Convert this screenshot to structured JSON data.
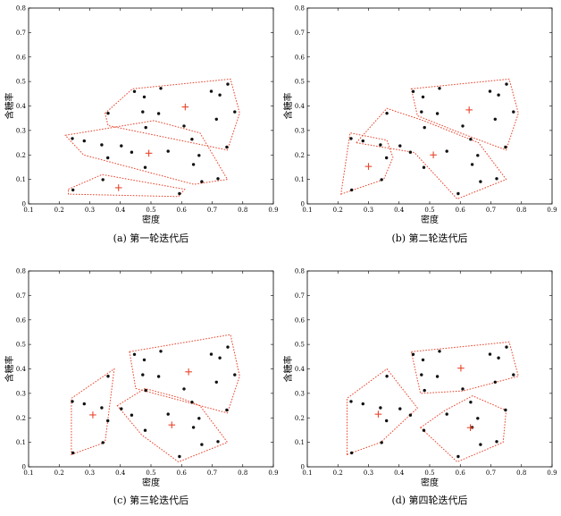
{
  "chart_data": [
    {
      "type": "scatter",
      "caption": "(a) 第一轮迭代后",
      "xlabel": "密度",
      "ylabel": "含糖率",
      "xlim": [
        0.1,
        0.9
      ],
      "ylim": [
        0,
        0.8
      ],
      "xticks": [
        "0.1",
        "0.2",
        "0.3",
        "0.4",
        "0.5",
        "0.6",
        "0.7",
        "0.8",
        "0.9"
      ],
      "yticks": [
        "0",
        "0.1",
        "0.2",
        "0.3",
        "0.4",
        "0.5",
        "0.6",
        "0.7",
        "0.8"
      ],
      "points": [
        [
          0.697,
          0.46
        ],
        [
          0.774,
          0.376
        ],
        [
          0.634,
          0.264
        ],
        [
          0.608,
          0.318
        ],
        [
          0.556,
          0.215
        ],
        [
          0.403,
          0.237
        ],
        [
          0.481,
          0.149
        ],
        [
          0.437,
          0.211
        ],
        [
          0.666,
          0.091
        ],
        [
          0.243,
          0.267
        ],
        [
          0.245,
          0.057
        ],
        [
          0.343,
          0.099
        ],
        [
          0.639,
          0.161
        ],
        [
          0.657,
          0.198
        ],
        [
          0.36,
          0.37
        ],
        [
          0.593,
          0.042
        ],
        [
          0.719,
          0.103
        ],
        [
          0.359,
          0.188
        ],
        [
          0.339,
          0.241
        ],
        [
          0.282,
          0.257
        ],
        [
          0.748,
          0.232
        ],
        [
          0.714,
          0.346
        ],
        [
          0.483,
          0.312
        ],
        [
          0.478,
          0.437
        ],
        [
          0.525,
          0.369
        ],
        [
          0.751,
          0.489
        ],
        [
          0.532,
          0.472
        ],
        [
          0.473,
          0.376
        ],
        [
          0.725,
          0.445
        ],
        [
          0.446,
          0.459
        ]
      ],
      "centroids": [
        [
          0.612,
          0.396
        ],
        [
          0.493,
          0.207
        ],
        [
          0.394,
          0.066
        ]
      ],
      "hulls": [
        [
          [
            0.35,
            0.37
          ],
          [
            0.44,
            0.47
          ],
          [
            0.76,
            0.51
          ],
          [
            0.79,
            0.37
          ],
          [
            0.75,
            0.22
          ],
          [
            0.36,
            0.32
          ]
        ],
        [
          [
            0.22,
            0.28
          ],
          [
            0.51,
            0.34
          ],
          [
            0.66,
            0.29
          ],
          [
            0.75,
            0.1
          ],
          [
            0.64,
            0.08
          ],
          [
            0.28,
            0.2
          ]
        ],
        [
          [
            0.23,
            0.06
          ],
          [
            0.34,
            0.12
          ],
          [
            0.61,
            0.06
          ],
          [
            0.59,
            0.03
          ],
          [
            0.23,
            0.04
          ]
        ]
      ]
    },
    {
      "type": "scatter",
      "caption": "(b) 第二轮迭代后",
      "xlabel": "密度",
      "ylabel": "含糖率",
      "xlim": [
        0.1,
        0.9
      ],
      "ylim": [
        0,
        0.8
      ],
      "xticks": [
        "0.1",
        "0.2",
        "0.3",
        "0.4",
        "0.5",
        "0.6",
        "0.7",
        "0.8",
        "0.9"
      ],
      "yticks": [
        "0",
        "0.1",
        "0.2",
        "0.3",
        "0.4",
        "0.5",
        "0.6",
        "0.7",
        "0.8"
      ],
      "points": [
        [
          0.697,
          0.46
        ],
        [
          0.774,
          0.376
        ],
        [
          0.634,
          0.264
        ],
        [
          0.608,
          0.318
        ],
        [
          0.556,
          0.215
        ],
        [
          0.403,
          0.237
        ],
        [
          0.481,
          0.149
        ],
        [
          0.437,
          0.211
        ],
        [
          0.666,
          0.091
        ],
        [
          0.243,
          0.267
        ],
        [
          0.245,
          0.057
        ],
        [
          0.343,
          0.099
        ],
        [
          0.639,
          0.161
        ],
        [
          0.657,
          0.198
        ],
        [
          0.36,
          0.37
        ],
        [
          0.593,
          0.042
        ],
        [
          0.719,
          0.103
        ],
        [
          0.359,
          0.188
        ],
        [
          0.339,
          0.241
        ],
        [
          0.282,
          0.257
        ],
        [
          0.748,
          0.232
        ],
        [
          0.714,
          0.346
        ],
        [
          0.483,
          0.312
        ],
        [
          0.478,
          0.437
        ],
        [
          0.525,
          0.369
        ],
        [
          0.751,
          0.489
        ],
        [
          0.532,
          0.472
        ],
        [
          0.473,
          0.376
        ],
        [
          0.725,
          0.445
        ],
        [
          0.446,
          0.459
        ]
      ],
      "centroids": [
        [
          0.629,
          0.384
        ],
        [
          0.512,
          0.2
        ],
        [
          0.3,
          0.153
        ]
      ],
      "hulls": [
        [
          [
            0.44,
            0.47
          ],
          [
            0.76,
            0.51
          ],
          [
            0.79,
            0.37
          ],
          [
            0.75,
            0.22
          ],
          [
            0.6,
            0.29
          ],
          [
            0.46,
            0.36
          ]
        ],
        [
          [
            0.26,
            0.25
          ],
          [
            0.36,
            0.39
          ],
          [
            0.48,
            0.34
          ],
          [
            0.66,
            0.25
          ],
          [
            0.75,
            0.1
          ],
          [
            0.59,
            0.02
          ],
          [
            0.45,
            0.21
          ]
        ],
        [
          [
            0.21,
            0.04
          ],
          [
            0.35,
            0.1
          ],
          [
            0.38,
            0.19
          ],
          [
            0.36,
            0.26
          ],
          [
            0.24,
            0.29
          ]
        ]
      ]
    },
    {
      "type": "scatter",
      "caption": "(c) 第三轮迭代后",
      "xlabel": "密度",
      "ylabel": "含糖率",
      "xlim": [
        0.1,
        0.9
      ],
      "ylim": [
        0,
        0.8
      ],
      "xticks": [
        "0.1",
        "0.2",
        "0.3",
        "0.4",
        "0.5",
        "0.6",
        "0.7",
        "0.8",
        "0.9"
      ],
      "yticks": [
        "0",
        "0.1",
        "0.2",
        "0.3",
        "0.4",
        "0.5",
        "0.6",
        "0.7",
        "0.8"
      ],
      "points": [
        [
          0.697,
          0.46
        ],
        [
          0.774,
          0.376
        ],
        [
          0.634,
          0.264
        ],
        [
          0.608,
          0.318
        ],
        [
          0.556,
          0.215
        ],
        [
          0.403,
          0.237
        ],
        [
          0.481,
          0.149
        ],
        [
          0.437,
          0.211
        ],
        [
          0.666,
          0.091
        ],
        [
          0.243,
          0.267
        ],
        [
          0.245,
          0.057
        ],
        [
          0.343,
          0.099
        ],
        [
          0.639,
          0.161
        ],
        [
          0.657,
          0.198
        ],
        [
          0.36,
          0.37
        ],
        [
          0.593,
          0.042
        ],
        [
          0.719,
          0.103
        ],
        [
          0.359,
          0.188
        ],
        [
          0.339,
          0.241
        ],
        [
          0.282,
          0.257
        ],
        [
          0.748,
          0.232
        ],
        [
          0.714,
          0.346
        ],
        [
          0.483,
          0.312
        ],
        [
          0.478,
          0.437
        ],
        [
          0.525,
          0.369
        ],
        [
          0.751,
          0.489
        ],
        [
          0.532,
          0.472
        ],
        [
          0.473,
          0.376
        ],
        [
          0.725,
          0.445
        ],
        [
          0.446,
          0.459
        ]
      ],
      "centroids": [
        [
          0.623,
          0.388
        ],
        [
          0.568,
          0.171
        ],
        [
          0.31,
          0.212
        ]
      ],
      "hulls": [
        [
          [
            0.43,
            0.47
          ],
          [
            0.76,
            0.54
          ],
          [
            0.79,
            0.37
          ],
          [
            0.75,
            0.22
          ],
          [
            0.45,
            0.32
          ]
        ],
        [
          [
            0.39,
            0.25
          ],
          [
            0.48,
            0.32
          ],
          [
            0.6,
            0.28
          ],
          [
            0.66,
            0.25
          ],
          [
            0.75,
            0.1
          ],
          [
            0.59,
            0.02
          ],
          [
            0.47,
            0.13
          ]
        ],
        [
          [
            0.24,
            0.05
          ],
          [
            0.35,
            0.1
          ],
          [
            0.38,
            0.4
          ],
          [
            0.24,
            0.28
          ]
        ]
      ]
    },
    {
      "type": "scatter",
      "caption": "(d) 第四轮迭代后",
      "xlabel": "密度",
      "ylabel": "含糖率",
      "xlim": [
        0.1,
        0.9
      ],
      "ylim": [
        0,
        0.8
      ],
      "xticks": [
        "0.1",
        "0.2",
        "0.3",
        "0.4",
        "0.5",
        "0.6",
        "0.7",
        "0.8",
        "0.9"
      ],
      "yticks": [
        "0",
        "0.1",
        "0.2",
        "0.3",
        "0.4",
        "0.5",
        "0.6",
        "0.7",
        "0.8"
      ],
      "points": [
        [
          0.697,
          0.46
        ],
        [
          0.774,
          0.376
        ],
        [
          0.634,
          0.264
        ],
        [
          0.608,
          0.318
        ],
        [
          0.556,
          0.215
        ],
        [
          0.403,
          0.237
        ],
        [
          0.481,
          0.149
        ],
        [
          0.437,
          0.211
        ],
        [
          0.666,
          0.091
        ],
        [
          0.243,
          0.267
        ],
        [
          0.245,
          0.057
        ],
        [
          0.343,
          0.099
        ],
        [
          0.639,
          0.161
        ],
        [
          0.657,
          0.198
        ],
        [
          0.36,
          0.37
        ],
        [
          0.593,
          0.042
        ],
        [
          0.719,
          0.103
        ],
        [
          0.359,
          0.188
        ],
        [
          0.339,
          0.241
        ],
        [
          0.282,
          0.257
        ],
        [
          0.748,
          0.232
        ],
        [
          0.714,
          0.346
        ],
        [
          0.483,
          0.312
        ],
        [
          0.478,
          0.437
        ],
        [
          0.525,
          0.369
        ],
        [
          0.751,
          0.489
        ],
        [
          0.532,
          0.472
        ],
        [
          0.473,
          0.376
        ],
        [
          0.725,
          0.445
        ],
        [
          0.446,
          0.459
        ]
      ],
      "centroids": [
        [
          0.602,
          0.403
        ],
        [
          0.633,
          0.16
        ],
        [
          0.332,
          0.215
        ]
      ],
      "hulls": [
        [
          [
            0.44,
            0.47
          ],
          [
            0.76,
            0.51
          ],
          [
            0.79,
            0.37
          ],
          [
            0.61,
            0.31
          ],
          [
            0.47,
            0.3
          ]
        ],
        [
          [
            0.47,
            0.16
          ],
          [
            0.55,
            0.23
          ],
          [
            0.64,
            0.29
          ],
          [
            0.75,
            0.23
          ],
          [
            0.74,
            0.1
          ],
          [
            0.59,
            0.02
          ]
        ],
        [
          [
            0.23,
            0.05
          ],
          [
            0.34,
            0.1
          ],
          [
            0.46,
            0.24
          ],
          [
            0.36,
            0.4
          ],
          [
            0.23,
            0.28
          ]
        ]
      ]
    }
  ]
}
